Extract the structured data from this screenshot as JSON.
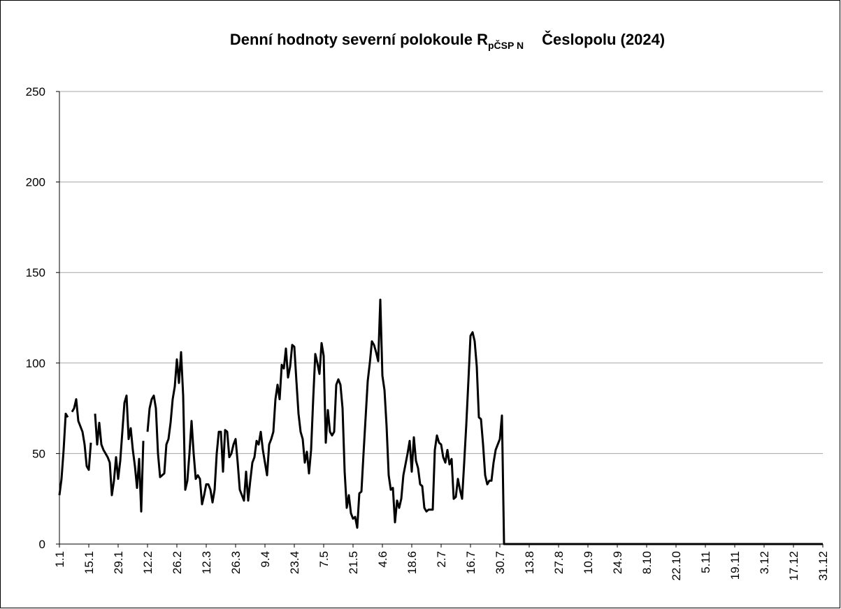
{
  "chart_data": {
    "type": "line",
    "title": "Denní hodnoty severní polokoule R",
    "title_subscript": "pČSP N",
    "title_suffix": "Česlopolu (2024)",
    "categories": [
      "1.1",
      null,
      null,
      null,
      null,
      null,
      null,
      null,
      null,
      null,
      null,
      null,
      null,
      null,
      "15.1",
      null,
      null,
      null,
      null,
      null,
      null,
      null,
      null,
      null,
      null,
      null,
      null,
      null,
      "29.1",
      null,
      null,
      null,
      null,
      null,
      null,
      null,
      null,
      null,
      null,
      null,
      null,
      null,
      "12.2",
      null,
      null,
      null,
      null,
      null,
      null,
      null,
      null,
      null,
      null,
      null,
      null,
      null,
      "26.2",
      null,
      null,
      null,
      null,
      null,
      null,
      null,
      null,
      null,
      null,
      null,
      null,
      null,
      "12.3",
      null,
      null,
      null,
      null,
      null,
      null,
      null,
      null,
      null,
      null,
      null,
      null,
      null,
      "26.3",
      null,
      null,
      null,
      null,
      null,
      null,
      null,
      null,
      null,
      null,
      null,
      null,
      null,
      "9.4",
      null,
      null,
      null,
      null,
      null,
      null,
      null,
      null,
      null,
      null,
      null,
      null,
      null,
      "23.4",
      null,
      null,
      null,
      null,
      null,
      null,
      null,
      null,
      null,
      null,
      null,
      null,
      null,
      "7.5",
      null,
      null,
      null,
      null,
      null,
      null,
      null,
      null,
      null,
      null,
      null,
      null,
      null,
      "21.5",
      null,
      null,
      null,
      null,
      null,
      null,
      null,
      null,
      null,
      null,
      null,
      null,
      null,
      "4.6",
      null,
      null,
      null,
      null,
      null,
      null,
      null,
      null,
      null,
      null,
      null,
      null,
      null,
      "18.6",
      null,
      null,
      null,
      null,
      null,
      null,
      null,
      null,
      null,
      null,
      null,
      null,
      null,
      "2.7",
      null,
      null,
      null,
      null,
      null,
      null,
      null,
      null,
      null,
      null,
      null,
      null,
      null,
      "16.7",
      null,
      null,
      null,
      null,
      null,
      null,
      null,
      null,
      null,
      null,
      null,
      null,
      null,
      "30.7",
      null,
      null,
      null,
      null,
      null,
      null,
      null,
      null,
      null,
      null,
      null,
      null,
      null,
      "13.8",
      null,
      null,
      null,
      null,
      null,
      null,
      null,
      null,
      null,
      null,
      null,
      null,
      null,
      "27.8",
      null,
      null,
      null,
      null,
      null,
      null,
      null,
      null,
      null,
      null,
      null,
      null,
      null,
      "10.9",
      null,
      null,
      null,
      null,
      null,
      null,
      null,
      null,
      null,
      null,
      null,
      null,
      null,
      "24.9",
      null,
      null,
      null,
      null,
      null,
      null,
      null,
      null,
      null,
      null,
      null,
      null,
      null,
      "8.10",
      null,
      null,
      null,
      null,
      null,
      null,
      null,
      null,
      null,
      null,
      null,
      null,
      null,
      "22.10",
      null,
      null,
      null,
      null,
      null,
      null,
      null,
      null,
      null,
      null,
      null,
      null,
      null,
      "5.11",
      null,
      null,
      null,
      null,
      null,
      null,
      null,
      null,
      null,
      null,
      null,
      null,
      null,
      "19.11",
      null,
      null,
      null,
      null,
      null,
      null,
      null,
      null,
      null,
      null,
      null,
      null,
      null,
      "3.12",
      null,
      null,
      null,
      null,
      null,
      null,
      null,
      null,
      null,
      null,
      null,
      null,
      null,
      "17.12",
      null,
      null,
      null,
      null,
      null,
      null,
      null,
      null,
      null,
      null,
      null,
      null,
      null,
      "31.12"
    ],
    "series": [
      {
        "color": "#000000",
        "values": [
          27,
          36,
          52,
          72,
          70,
          null,
          73,
          75,
          80,
          68,
          65,
          62,
          55,
          43,
          41,
          56,
          null,
          72,
          55,
          67,
          55,
          52,
          50,
          48,
          45,
          27,
          35,
          48,
          36,
          46,
          62,
          78,
          82,
          58,
          64,
          52,
          43,
          31,
          47,
          18,
          57,
          null,
          62,
          75,
          80,
          82,
          75,
          50,
          37,
          38,
          39,
          55,
          58,
          67,
          80,
          87,
          102,
          89,
          106,
          82,
          30,
          35,
          50,
          68,
          50,
          36,
          38,
          36,
          22,
          27,
          33,
          33,
          30,
          23,
          30,
          50,
          62,
          62,
          40,
          63,
          62,
          48,
          50,
          55,
          58,
          45,
          30,
          27,
          24,
          40,
          24,
          35,
          45,
          48,
          57,
          55,
          62,
          52,
          45,
          38,
          55,
          58,
          62,
          80,
          88,
          80,
          99,
          97,
          108,
          92,
          98,
          110,
          109,
          90,
          72,
          62,
          58,
          45,
          51,
          39,
          52,
          80,
          105,
          100,
          94,
          111,
          104,
          56,
          74,
          62,
          60,
          62,
          88,
          91,
          88,
          75,
          40,
          20,
          27,
          17,
          14,
          15,
          9,
          28,
          29,
          50,
          70,
          90,
          100,
          112,
          110,
          106,
          101,
          135,
          93,
          85,
          65,
          38,
          30,
          31,
          12,
          24,
          20,
          25,
          38,
          44,
          50,
          57,
          40,
          59,
          46,
          42,
          33,
          32,
          20,
          18,
          19,
          19,
          19,
          52,
          60,
          56,
          55,
          48,
          45,
          52,
          44,
          47,
          25,
          26,
          36,
          30,
          25,
          45,
          66,
          90,
          115,
          117,
          112,
          98,
          70,
          69,
          55,
          38,
          33,
          35,
          35,
          45,
          52,
          55,
          58,
          71,
          0,
          0,
          0,
          0,
          0,
          0,
          0,
          0,
          0,
          0,
          0,
          0,
          0,
          0,
          0,
          0,
          0,
          0,
          0,
          0,
          0,
          0,
          0,
          0,
          0,
          0,
          0,
          0,
          0,
          0,
          0,
          0,
          0,
          0,
          0,
          0,
          0,
          0,
          0,
          0,
          0,
          0,
          0,
          0,
          0,
          0,
          0,
          0,
          0,
          0,
          0,
          0,
          0,
          0,
          0,
          0,
          0,
          0,
          0,
          0,
          0,
          0,
          0,
          0,
          0,
          0,
          0,
          0,
          0,
          0,
          0,
          0,
          0,
          0,
          0,
          0,
          0,
          0,
          0,
          0,
          0,
          0,
          0,
          0,
          0,
          0,
          0,
          0,
          0,
          0,
          0,
          0,
          0,
          0,
          0,
          0,
          0,
          0,
          0,
          0,
          0,
          0,
          0,
          0,
          0,
          0,
          0,
          0,
          0,
          0,
          0,
          0,
          0,
          0,
          0,
          0,
          0,
          0,
          0,
          0,
          0,
          0,
          0,
          0,
          0,
          0,
          0,
          0,
          0,
          0,
          0,
          0,
          0,
          0,
          0,
          0,
          0,
          0,
          0,
          0,
          0,
          0,
          0,
          0,
          0,
          0,
          0,
          0,
          0,
          0,
          0,
          0,
          0
        ]
      }
    ],
    "ylim": [
      0,
      250
    ],
    "yticks": [
      0,
      50,
      100,
      150,
      200,
      250
    ],
    "grid": true
  }
}
